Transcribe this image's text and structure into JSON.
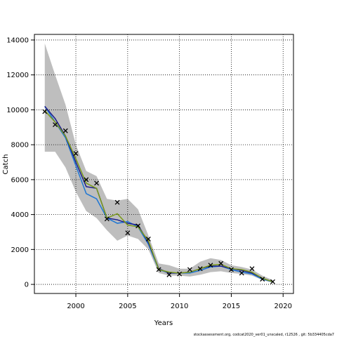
{
  "chart_data": {
    "type": "line",
    "xlabel": "Years",
    "ylabel": "Catch",
    "footer": "stockassessment.org, codcat2020_ver01_unscaled, r12526 , git: 5b334405cda7",
    "x": [
      1997,
      1998,
      1999,
      2000,
      2001,
      2002,
      2003,
      2004,
      2005,
      2006,
      2007,
      2008,
      2009,
      2010,
      2011,
      2012,
      2013,
      2014,
      2015,
      2016,
      2017,
      2018,
      2019
    ],
    "band": {
      "color": "#bebebe",
      "upper": [
        13800,
        12000,
        10300,
        8000,
        6500,
        6200,
        4900,
        4800,
        4900,
        4300,
        2800,
        1200,
        1100,
        900,
        900,
        1300,
        1500,
        1400,
        1100,
        1000,
        850,
        500,
        250
      ],
      "lower": [
        7600,
        7600,
        6700,
        5300,
        4200,
        3800,
        3100,
        2500,
        2800,
        2600,
        2000,
        650,
        500,
        500,
        450,
        550,
        700,
        750,
        650,
        600,
        500,
        250,
        100
      ]
    },
    "series": [
      {
        "color": "#1f77d4",
        "values": [
          10200,
          9300,
          8400,
          6800,
          5200,
          4900,
          3800,
          3500,
          3600,
          3300,
          2300,
          850,
          650,
          650,
          650,
          800,
          1000,
          1050,
          850,
          700,
          600,
          300,
          150
        ]
      },
      {
        "color": "#1c1c8c",
        "values": [
          10200,
          9500,
          8500,
          7000,
          5600,
          5500,
          3800,
          3700,
          3500,
          3400,
          2400,
          900,
          650,
          650,
          700,
          900,
          1050,
          1050,
          900,
          800,
          650,
          350,
          150
        ]
      },
      {
        "color": "#7a9a1a",
        "values": [
          9950,
          9300,
          8500,
          7200,
          5800,
          5500,
          3800,
          4050,
          3400,
          3300,
          2500,
          850,
          700,
          650,
          700,
          900,
          1100,
          1150,
          900,
          850,
          700,
          350,
          150
        ]
      }
    ],
    "observations": {
      "color": "#000000",
      "values": [
        9900,
        9150,
        8800,
        7500,
        6000,
        5800,
        3750,
        4700,
        2950,
        3350,
        2600,
        850,
        550,
        600,
        850,
        900,
        1100,
        1200,
        850,
        650,
        900,
        300,
        150
      ]
    },
    "xlim": [
      1996,
      2021
    ],
    "ylim": [
      -520,
      14320
    ],
    "xticks": [
      2000,
      2005,
      2010,
      2015,
      2020
    ],
    "yticks": [
      0,
      2000,
      4000,
      6000,
      8000,
      10000,
      12000,
      14000
    ],
    "grid": true
  }
}
